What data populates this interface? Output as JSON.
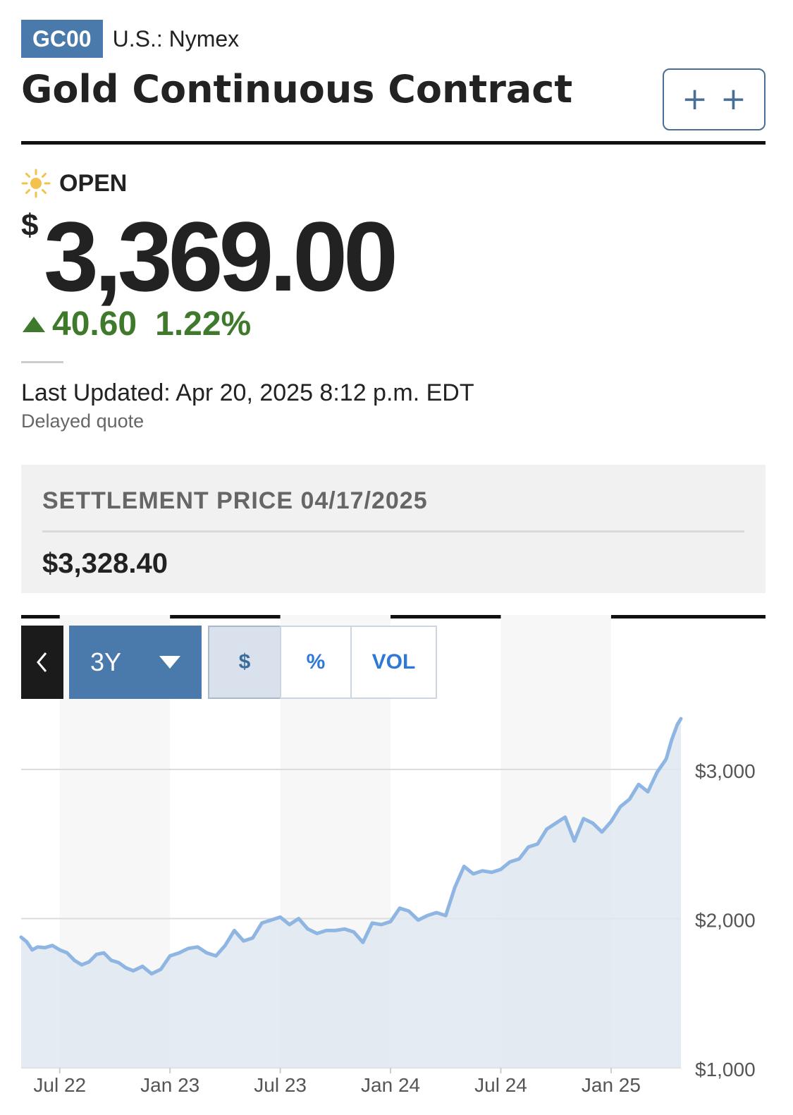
{
  "header": {
    "ticker": "GC00",
    "exchange": "U.S.: Nymex",
    "title": "Gold Continuous Contract",
    "watch_button": "+ +"
  },
  "quote": {
    "market_status": "OPEN",
    "status_icon": "sun-icon",
    "currency_symbol": "$",
    "price": "3,369.00",
    "change": "40.60",
    "change_percent": "1.22%",
    "direction": "up",
    "last_updated": "Last Updated: Apr 20, 2025 8:12 p.m. EDT",
    "delayed_note": "Delayed quote"
  },
  "settlement": {
    "label": "SETTLEMENT PRICE 04/17/2025",
    "value": "$3,328.40"
  },
  "chart_controls": {
    "back_icon": "chevron-left-icon",
    "range": "3Y",
    "modes": [
      "$",
      "%",
      "VOL"
    ],
    "selected_mode": "$"
  },
  "colors": {
    "accent": "#4a7aab",
    "up": "#3f7a2c",
    "line": "#8fb6e3",
    "area": "#e0e7f0"
  },
  "chart_data": {
    "type": "area",
    "x_tick_labels": [
      "Jul 22",
      "Jan 23",
      "Jul 23",
      "Jan 24",
      "Jul 24",
      "Jan 25"
    ],
    "y_tick_labels": [
      "$3,000",
      "$2,000",
      "$1,000"
    ],
    "y_ticks": [
      3000,
      2000,
      1000
    ],
    "ylim": [
      1000,
      3450
    ],
    "xlim": [
      -2.1,
      33.8
    ],
    "grid": true,
    "x": [
      -2.1,
      -1.8,
      -1.5,
      -1.2,
      -0.8,
      -0.4,
      0.0,
      0.4,
      0.8,
      1.2,
      1.6,
      2.0,
      2.4,
      2.8,
      3.2,
      3.6,
      4.0,
      4.5,
      5.0,
      5.5,
      6.0,
      6.5,
      7.0,
      7.5,
      8.0,
      8.5,
      9.0,
      9.5,
      10.0,
      10.5,
      11.0,
      11.5,
      12.0,
      12.5,
      13.0,
      13.5,
      14.0,
      14.5,
      15.0,
      15.5,
      16.0,
      16.5,
      17.0,
      17.5,
      18.0,
      18.5,
      19.0,
      19.5,
      20.0,
      20.5,
      21.0,
      21.5,
      22.0,
      22.5,
      23.0,
      23.5,
      24.0,
      24.5,
      25.0,
      25.5,
      26.0,
      26.5,
      27.0,
      27.5,
      28.0,
      28.5,
      29.0,
      29.5,
      30.0,
      30.5,
      31.0,
      31.5,
      32.0,
      32.5,
      33.0,
      33.3,
      33.6,
      33.8
    ],
    "y": [
      1875,
      1845,
      1790,
      1810,
      1805,
      1820,
      1790,
      1770,
      1720,
      1690,
      1710,
      1760,
      1770,
      1720,
      1705,
      1670,
      1650,
      1680,
      1630,
      1660,
      1750,
      1770,
      1800,
      1810,
      1770,
      1750,
      1820,
      1920,
      1850,
      1870,
      1970,
      1990,
      2010,
      1960,
      2000,
      1930,
      1900,
      1920,
      1920,
      1930,
      1910,
      1840,
      1970,
      1960,
      1980,
      2070,
      2050,
      1990,
      2020,
      2040,
      2020,
      2210,
      2350,
      2300,
      2320,
      2310,
      2330,
      2380,
      2400,
      2480,
      2500,
      2600,
      2640,
      2680,
      2520,
      2670,
      2640,
      2580,
      2650,
      2750,
      2800,
      2900,
      2850,
      2980,
      3070,
      3200,
      3300,
      3340
    ]
  }
}
